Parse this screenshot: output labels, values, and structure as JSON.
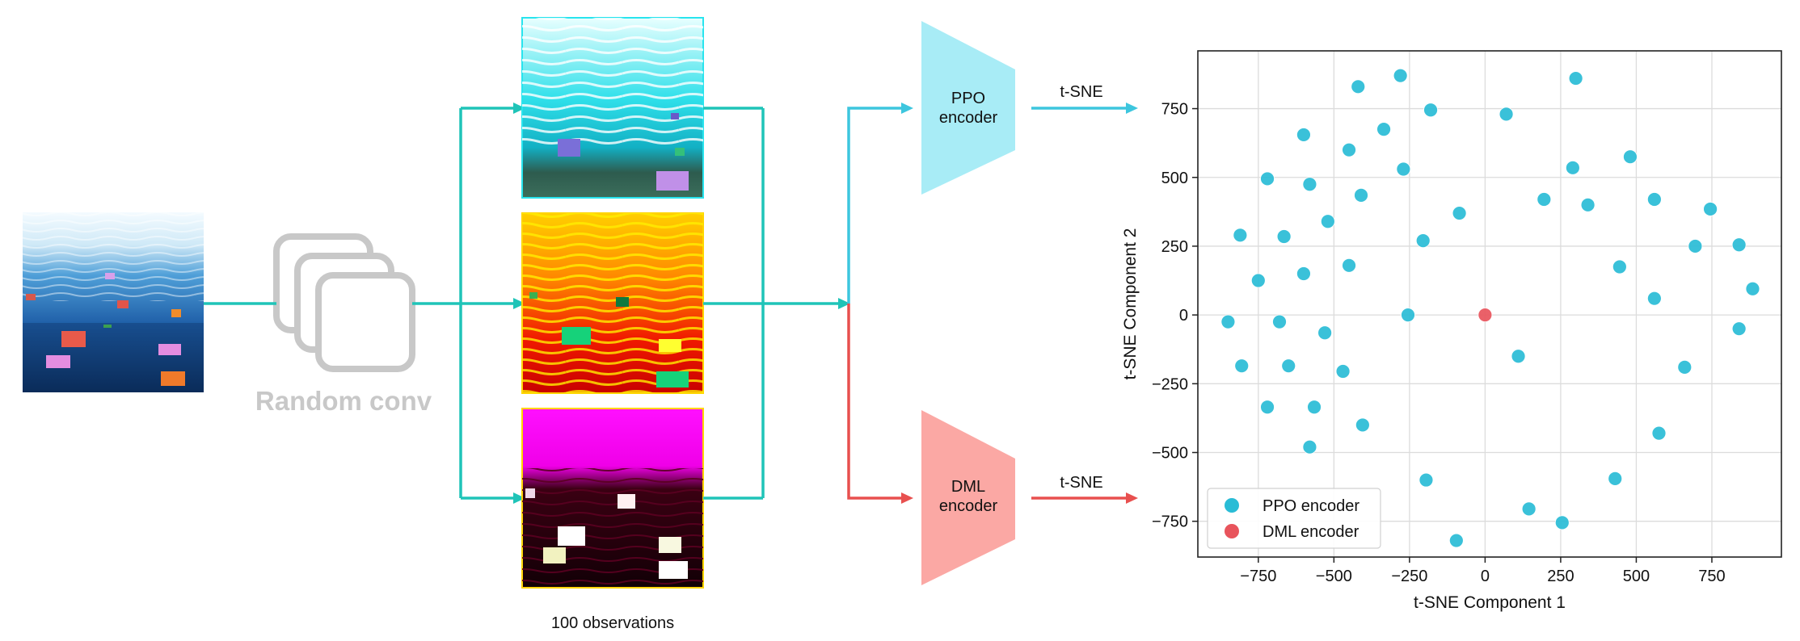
{
  "pipeline": {
    "random_conv_label": "Random conv",
    "observations_label": "100 observations",
    "ppo_encoder_label": [
      "PPO",
      "encoder"
    ],
    "dml_encoder_label": [
      "DML",
      "encoder"
    ],
    "tsne_top_label": "t-SNE",
    "tsne_bottom_label": "t-SNE"
  },
  "colors": {
    "teal": "#1fc4b8",
    "ppo": "#3dc6de",
    "ppo_fill": "#a8ecf6",
    "dml": "#e8504f",
    "dml_fill": "#fba8a4",
    "ghost": "#c8c8c8"
  },
  "chart_data": {
    "type": "scatter",
    "xlabel": "t-SNE Component 1",
    "ylabel": "t-SNE Component 2",
    "xlim": [
      -950,
      980
    ],
    "ylim": [
      -880,
      960
    ],
    "xticks": [
      -750,
      -500,
      -250,
      0,
      250,
      500,
      750
    ],
    "yticks": [
      -750,
      -500,
      -250,
      0,
      250,
      500,
      750
    ],
    "xtick_labels": [
      "−750",
      "−500",
      "−250",
      "0",
      "250",
      "500",
      "750"
    ],
    "ytick_labels": [
      "−750",
      "−500",
      "−250",
      "0",
      "250",
      "500",
      "750"
    ],
    "grid": true,
    "legend_position": "lower-left",
    "series": [
      {
        "name": "PPO encoder",
        "color": "#29bcd6",
        "points": [
          [
            -420,
            830
          ],
          [
            -280,
            870
          ],
          [
            300,
            860
          ],
          [
            -180,
            745
          ],
          [
            70,
            730
          ],
          [
            -600,
            655
          ],
          [
            -335,
            675
          ],
          [
            -450,
            600
          ],
          [
            480,
            575
          ],
          [
            -270,
            530
          ],
          [
            290,
            535
          ],
          [
            -720,
            495
          ],
          [
            -580,
            475
          ],
          [
            -410,
            435
          ],
          [
            195,
            420
          ],
          [
            560,
            420
          ],
          [
            340,
            400
          ],
          [
            745,
            385
          ],
          [
            -85,
            370
          ],
          [
            -520,
            340
          ],
          [
            -810,
            290
          ],
          [
            -665,
            285
          ],
          [
            -205,
            270
          ],
          [
            695,
            250
          ],
          [
            840,
            255
          ],
          [
            -450,
            180
          ],
          [
            445,
            175
          ],
          [
            -600,
            150
          ],
          [
            -750,
            125
          ],
          [
            885,
            95
          ],
          [
            560,
            60
          ],
          [
            -850,
            -25
          ],
          [
            -680,
            -25
          ],
          [
            -255,
            0
          ],
          [
            -530,
            -65
          ],
          [
            840,
            -50
          ],
          [
            110,
            -150
          ],
          [
            -805,
            -185
          ],
          [
            -650,
            -185
          ],
          [
            -470,
            -205
          ],
          [
            660,
            -190
          ],
          [
            -720,
            -335
          ],
          [
            -565,
            -335
          ],
          [
            -405,
            -400
          ],
          [
            575,
            -430
          ],
          [
            -580,
            -480
          ],
          [
            -195,
            -600
          ],
          [
            430,
            -595
          ],
          [
            145,
            -705
          ],
          [
            255,
            -755
          ],
          [
            -95,
            -820
          ]
        ]
      },
      {
        "name": "DML encoder",
        "color": "#e8545c",
        "points": [
          [
            0,
            0
          ]
        ]
      }
    ]
  }
}
